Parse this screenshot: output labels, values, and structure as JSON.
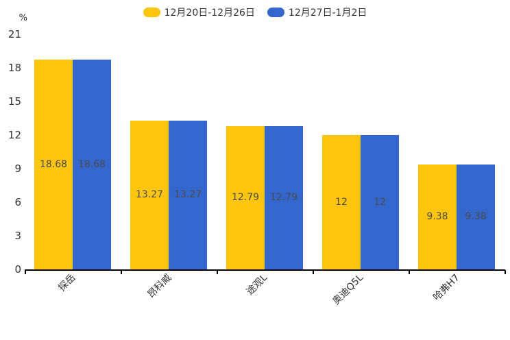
{
  "chart_data": {
    "type": "bar",
    "title": "",
    "ylabel": "%",
    "categories": [
      "探岳",
      "昂科威",
      "途观L",
      "奥迪Q5L",
      "哈弗H7"
    ],
    "series": [
      {
        "name": "12月20日-12月26日",
        "color": "#FDC60D",
        "values": [
          18.68,
          13.27,
          12.79,
          12,
          9.38
        ],
        "labels": [
          "18.68",
          "13.27",
          "12.79",
          "12",
          "9.38"
        ]
      },
      {
        "name": "12月27日-1月2日",
        "color": "#3467CD",
        "values": [
          18.68,
          13.27,
          12.79,
          12,
          9.38
        ],
        "labels": [
          "18.68",
          "13.27",
          "12.79",
          "12",
          "9.38"
        ]
      }
    ],
    "y_ticks": [
      0,
      3,
      6,
      9,
      12,
      15,
      18,
      21
    ],
    "ylim": [
      0,
      21
    ],
    "grid": false,
    "legend_position": "top",
    "value_label_color": "#4a4a4a",
    "axis_color": "#000000",
    "text_color": "#333333"
  }
}
